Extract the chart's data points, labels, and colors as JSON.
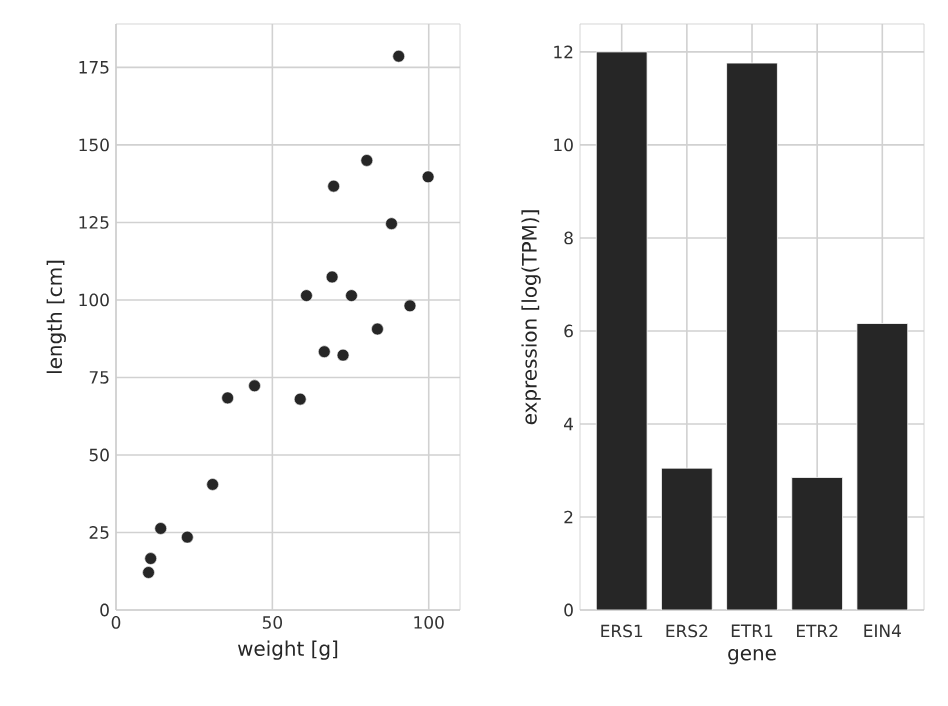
{
  "chart_data": [
    {
      "type": "scatter",
      "xlabel": "weight [g]",
      "ylabel": "length [cm]",
      "x": [
        90.4,
        80.2,
        99.8,
        69.6,
        88.1,
        69.1,
        60.9,
        75.3,
        94.0,
        83.6,
        66.6,
        72.6,
        44.3,
        35.7,
        58.9,
        30.9,
        14.3,
        22.8,
        11.1,
        10.4
      ],
      "values": [
        178.6,
        145,
        139.7,
        136.7,
        124.6,
        107.4,
        101.4,
        101.4,
        98.1,
        90.6,
        83.3,
        82.2,
        72.3,
        68.4,
        68.0,
        40.5,
        26.3,
        23.5,
        16.6,
        12.1
      ],
      "color": "#262626",
      "marker": "circle",
      "xlim": [
        0,
        110
      ],
      "xticks": [
        0,
        50,
        100
      ],
      "ylim": [
        0,
        189
      ],
      "yticks": [
        0,
        25,
        50,
        75,
        100,
        125,
        150,
        175
      ],
      "grid": true
    },
    {
      "type": "bar",
      "xlabel": "gene",
      "ylabel": "expression [log(TPM)]",
      "categories": [
        "ERS1",
        "ERS2",
        "ETR1",
        "ETR2",
        "EIN4"
      ],
      "values": [
        12.0,
        3.05,
        11.76,
        2.85,
        6.16
      ],
      "color": "#262626",
      "ylim": [
        0,
        12.6
      ],
      "yticks": [
        0,
        2,
        4,
        6,
        8,
        10,
        12
      ],
      "grid": true
    }
  ]
}
